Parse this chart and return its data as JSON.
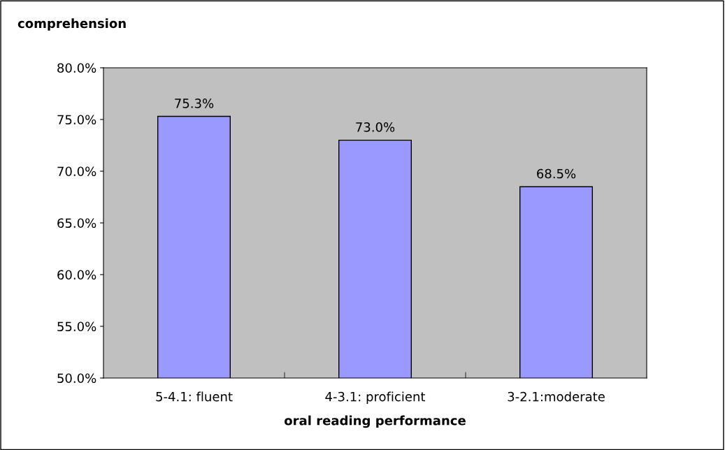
{
  "chart_data": {
    "type": "bar",
    "xlabel": "oral reading performance",
    "ylabel": "comprehension",
    "categories": [
      "5-4.1: fluent",
      "4-3.1: proficient",
      "3-2.1:moderate"
    ],
    "values": [
      75.3,
      73.0,
      68.5
    ],
    "value_labels": [
      "75.3%",
      "73.0%",
      "68.5%"
    ],
    "color": "#9999ff",
    "ylim": [
      50,
      80
    ],
    "yticks": [
      {
        "value": 50,
        "label": "50.0%"
      },
      {
        "value": 55,
        "label": "55.0%"
      },
      {
        "value": 60,
        "label": "60.0%"
      },
      {
        "value": 65,
        "label": "65.0%"
      },
      {
        "value": 70,
        "label": "70.0%"
      },
      {
        "value": 75,
        "label": "75.0%"
      },
      {
        "value": 80,
        "label": "80.0%"
      }
    ],
    "grid": false,
    "legend": false
  }
}
